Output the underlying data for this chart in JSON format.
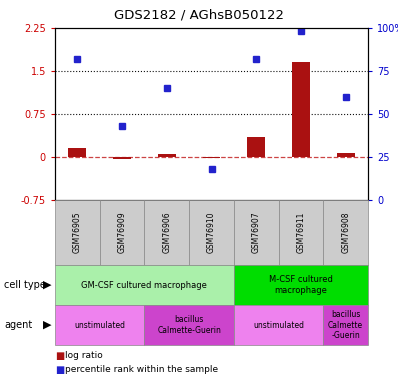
{
  "title": "GDS2182 / AGhsB050122",
  "samples": [
    "GSM76905",
    "GSM76909",
    "GSM76906",
    "GSM76910",
    "GSM76907",
    "GSM76911",
    "GSM76908"
  ],
  "log_ratio": [
    0.15,
    -0.03,
    0.05,
    -0.02,
    0.35,
    1.65,
    0.07
  ],
  "percentile_rank": [
    82,
    43,
    65,
    18,
    82,
    98,
    60
  ],
  "ylim_left": [
    -0.75,
    2.25
  ],
  "ylim_right": [
    0,
    100
  ],
  "yticks_left": [
    -0.75,
    0,
    0.75,
    1.5,
    2.25
  ],
  "yticks_right": [
    0,
    25,
    50,
    75,
    100
  ],
  "hlines": [
    0.75,
    1.5
  ],
  "cell_type_groups": [
    {
      "label": "GM-CSF cultured macrophage",
      "start": 0,
      "end": 3,
      "color": "#aaf0aa"
    },
    {
      "label": "M-CSF cultured\nmacrophage",
      "start": 4,
      "end": 6,
      "color": "#00dd00"
    }
  ],
  "agent_groups": [
    {
      "label": "unstimulated",
      "start": 0,
      "end": 1,
      "color": "#ee82ee"
    },
    {
      "label": "bacillus\nCalmette-Guerin",
      "start": 2,
      "end": 3,
      "color": "#cc44cc"
    },
    {
      "label": "unstimulated",
      "start": 4,
      "end": 5,
      "color": "#ee82ee"
    },
    {
      "label": "bacillus\nCalmette\n-Guerin",
      "start": 6,
      "end": 6,
      "color": "#cc44cc"
    }
  ],
  "bar_color": "#aa1111",
  "dot_color": "#2222cc",
  "zero_line_color": "#cc4444",
  "grid_line_color": "#111111",
  "bg_color": "#ffffff",
  "tick_label_color_left": "#cc0000",
  "tick_label_color_right": "#0000cc",
  "sample_bg_color": "#cccccc"
}
